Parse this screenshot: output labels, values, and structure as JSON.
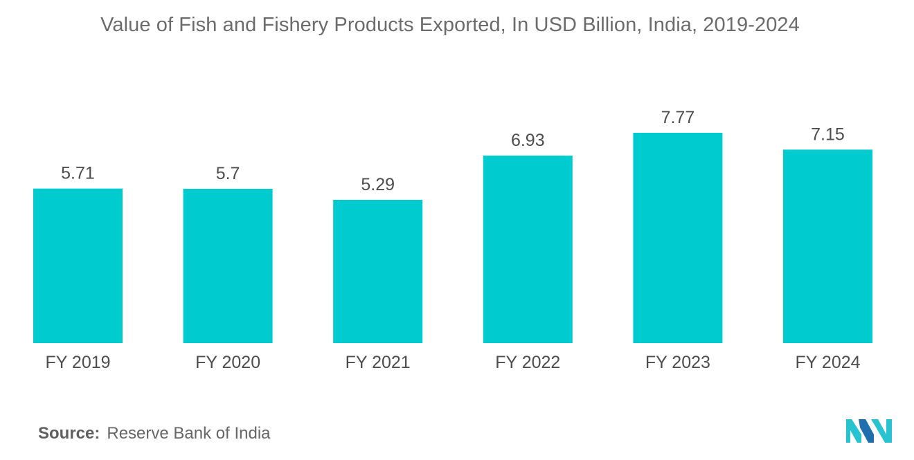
{
  "title": "Value of Fish and Fishery Products Exported, In USD Billion, India, 2019-2024",
  "source": {
    "label": "Source:",
    "text": "Reserve Bank of India"
  },
  "logo": {
    "icon": "mordor-intelligence-logo-icon",
    "colors": [
      "#1f6fae",
      "#27c3d1"
    ]
  },
  "colors": {
    "bar": "#00cccf"
  },
  "chart_data": {
    "type": "bar",
    "title": "Value of Fish and Fishery Products Exported, In USD Billion, India, 2019-2024",
    "xlabel": "",
    "ylabel": "",
    "categories": [
      "FY 2019",
      "FY 2020",
      "FY 2021",
      "FY 2022",
      "FY 2023",
      "FY 2024"
    ],
    "values": [
      5.71,
      5.7,
      5.29,
      6.93,
      7.77,
      7.15
    ],
    "value_labels": [
      "5.71",
      "5.7",
      "5.29",
      "6.93",
      "7.77",
      "7.15"
    ],
    "ylim": [
      0,
      7.77
    ],
    "grid": false,
    "legend": "none"
  }
}
